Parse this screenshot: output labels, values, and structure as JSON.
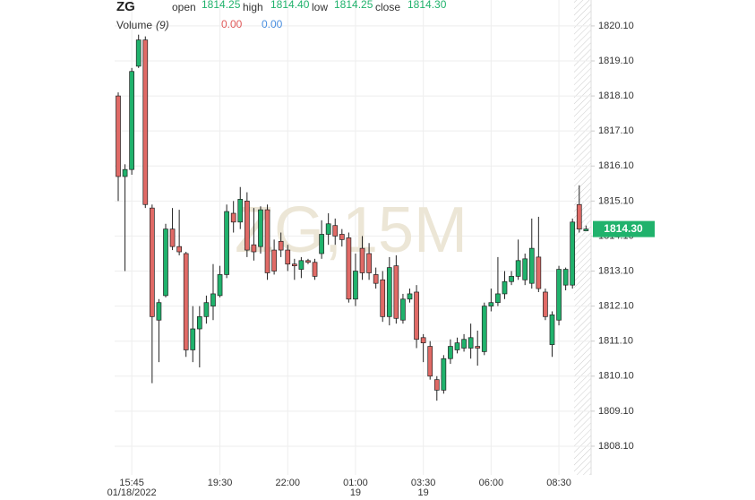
{
  "chart_data": {
    "type": "candlestick",
    "symbol": "ZG",
    "watermark": "ZG,15M",
    "header": {
      "open_label": "open",
      "open": "1814.25",
      "high_label": "high",
      "high": "1814.40",
      "low_label": "low",
      "low": "1814.25",
      "close_label": "close",
      "close": "1814.30"
    },
    "volume": {
      "label": "Volume",
      "period": "(9)",
      "value_a": "0.00",
      "value_b": "0.00",
      "color_a": "#e05a5a",
      "color_b": "#4a8fe0"
    },
    "last_price_label": "1814.30",
    "up_color": "#20b26c",
    "down_color": "#e06a66",
    "categories": [
      null,
      null,
      "15:45",
      null,
      null,
      null,
      null,
      null,
      null,
      null,
      null,
      null,
      null,
      null,
      null,
      "19:30",
      null,
      null,
      null,
      null,
      null,
      null,
      null,
      null,
      null,
      "22:00",
      null,
      null,
      null,
      null,
      null,
      null,
      null,
      null,
      null,
      "01:00",
      null,
      null,
      null,
      null,
      null,
      null,
      null,
      null,
      null,
      "03:30",
      null,
      null,
      null,
      null,
      null,
      null,
      null,
      null,
      null,
      "06:00",
      null,
      null,
      null,
      null,
      null,
      null,
      null,
      null,
      null,
      "08:30",
      null,
      null,
      null,
      null
    ],
    "sublabels": [
      null,
      null,
      "01/18/2022",
      null,
      null,
      null,
      null,
      null,
      null,
      null,
      null,
      null,
      null,
      null,
      null,
      null,
      null,
      null,
      null,
      null,
      null,
      null,
      null,
      null,
      null,
      null,
      null,
      null,
      null,
      null,
      null,
      null,
      null,
      null,
      null,
      "19",
      null,
      null,
      null,
      null,
      null,
      null,
      null,
      null,
      null,
      "19",
      null,
      null,
      null,
      null,
      null,
      null,
      null,
      null,
      null,
      null,
      null,
      null,
      null,
      null,
      null,
      null,
      null,
      null,
      null,
      null,
      null,
      null,
      null,
      null
    ],
    "open": [
      1818.1,
      1815.8,
      1816.0,
      1818.95,
      1819.7,
      1814.9,
      1811.7,
      1812.4,
      1814.3,
      1813.8,
      1813.6,
      1810.85,
      1811.45,
      1811.8,
      1812.1,
      1812.4,
      1813.0,
      1814.75,
      1814.5,
      1815.1,
      1813.85,
      1813.8,
      1814.85,
      1813.7,
      1813.95,
      1813.7,
      1813.3,
      1813.15,
      1813.4,
      1813.35,
      1813.6,
      1814.15,
      1814.4,
      1814.15,
      1814.05,
      1812.3,
      1813.75,
      1813.6,
      1813.0,
      1812.85,
      1811.8,
      1813.25,
      1811.7,
      1812.3,
      1812.5,
      1811.2,
      1810.95,
      1810.0,
      1809.7,
      1810.6,
      1810.85,
      1810.9,
      1810.9,
      1810.95,
      1810.8,
      1812.1,
      1812.2,
      1812.45,
      1812.8,
      1812.95,
      1812.85,
      1812.75,
      1813.5,
      1812.5,
      1811.0,
      1811.7,
      1812.7,
      1812.7,
      1815.0,
      1814.25
    ],
    "high": [
      1818.2,
      1816.15,
      1818.9,
      1819.85,
      1819.8,
      1815.0,
      1812.3,
      1814.45,
      1814.9,
      1814.85,
      1813.65,
      1812.1,
      1812.1,
      1812.4,
      1813.3,
      1813.25,
      1815.0,
      1815.1,
      1815.5,
      1815.35,
      1814.9,
      1814.95,
      1815.0,
      1814.0,
      1814.2,
      1813.85,
      1813.45,
      1813.5,
      1813.45,
      1813.45,
      1814.55,
      1814.75,
      1814.6,
      1814.3,
      1814.2,
      1813.6,
      1814.1,
      1813.9,
      1813.2,
      1813.1,
      1813.5,
      1813.55,
      1812.45,
      1812.6,
      1812.7,
      1811.3,
      1811.1,
      1810.1,
      1810.7,
      1811.15,
      1811.2,
      1811.3,
      1811.6,
      1811.4,
      1812.2,
      1812.6,
      1813.5,
      1813.1,
      1813.1,
      1814.0,
      1813.6,
      1814.6,
      1814.65,
      1812.6,
      1811.95,
      1813.25,
      1813.2,
      1814.6,
      1815.55,
      1814.4
    ],
    "low": [
      1815.1,
      1813.1,
      1815.85,
      1818.9,
      1814.9,
      1809.9,
      1810.5,
      1812.35,
      1813.7,
      1813.55,
      1810.65,
      1810.5,
      1810.35,
      1811.6,
      1811.7,
      1812.35,
      1812.9,
      1814.2,
      1814.3,
      1813.5,
      1813.4,
      1813.6,
      1812.85,
      1813.0,
      1813.5,
      1813.1,
      1812.85,
      1812.9,
      1813.3,
      1812.85,
      1813.45,
      1813.85,
      1813.85,
      1813.8,
      1812.2,
      1812.1,
      1812.85,
      1812.85,
      1812.6,
      1811.65,
      1811.55,
      1811.6,
      1811.6,
      1812.2,
      1810.9,
      1810.5,
      1810.0,
      1809.4,
      1809.6,
      1810.45,
      1810.75,
      1810.8,
      1810.6,
      1810.4,
      1810.7,
      1811.95,
      1812.1,
      1812.3,
      1812.7,
      1812.85,
      1812.7,
      1812.6,
      1812.5,
      1811.7,
      1810.65,
      1811.55,
      1812.55,
      1812.6,
      1814.2,
      1814.25
    ],
    "close": [
      1815.8,
      1816.0,
      1818.8,
      1819.7,
      1815.0,
      1811.8,
      1812.2,
      1814.3,
      1813.8,
      1813.65,
      1810.85,
      1811.45,
      1811.8,
      1812.2,
      1812.45,
      1813.0,
      1814.8,
      1814.5,
      1815.15,
      1813.7,
      1813.65,
      1814.85,
      1813.05,
      1813.1,
      1813.7,
      1813.3,
      1813.25,
      1813.4,
      1813.35,
      1812.95,
      1814.15,
      1814.45,
      1814.1,
      1814.0,
      1812.3,
      1813.1,
      1813.05,
      1813.05,
      1812.75,
      1811.8,
      1813.2,
      1811.75,
      1812.3,
      1812.45,
      1811.15,
      1811.05,
      1810.1,
      1809.7,
      1810.6,
      1810.95,
      1811.05,
      1811.15,
      1811.2,
      1810.9,
      1812.1,
      1812.2,
      1812.45,
      1812.8,
      1812.95,
      1813.4,
      1813.45,
      1813.75,
      1812.6,
      1811.8,
      1811.85,
      1813.15,
      1813.15,
      1814.5,
      1814.3,
      1814.3
    ],
    "ylim": [
      1807.28,
      1820.84
    ],
    "yticks": [
      {
        "value": 1808.1,
        "label": "1808.10"
      },
      {
        "value": 1809.1,
        "label": "1809.10"
      },
      {
        "value": 1810.1,
        "label": "1810.10"
      },
      {
        "value": 1811.1,
        "label": "1811.10"
      },
      {
        "value": 1812.1,
        "label": "1812.10"
      },
      {
        "value": 1813.1,
        "label": "1813.10"
      },
      {
        "value": 1814.1,
        "label": "1814.10"
      },
      {
        "value": 1815.1,
        "label": "1815.10"
      },
      {
        "value": 1816.1,
        "label": "1816.10"
      },
      {
        "value": 1817.1,
        "label": "1817.10"
      },
      {
        "value": 1818.1,
        "label": "1818.10"
      },
      {
        "value": 1819.1,
        "label": "1819.10"
      },
      {
        "value": 1820.1,
        "label": "1820.10"
      }
    ],
    "grid": true
  }
}
